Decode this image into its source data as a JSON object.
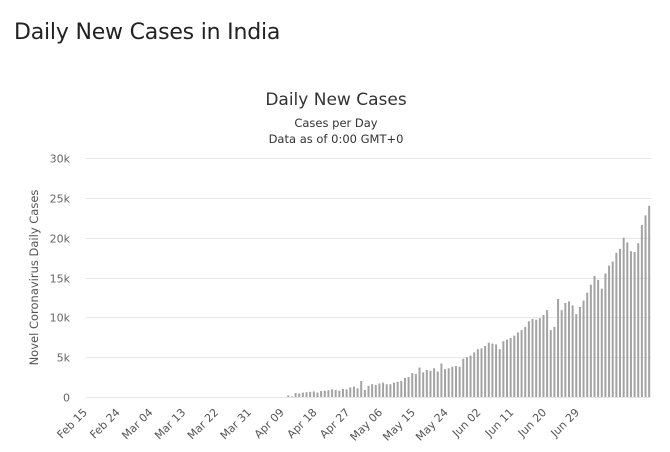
{
  "page": {
    "heading": "Daily New Cases in India"
  },
  "chart_data": {
    "type": "bar",
    "title": "Daily New Cases",
    "subtitle_lines": [
      "Cases per Day",
      "Data as of 0:00 GMT+0"
    ],
    "ylabel": "Novel Coronavirus Daily Cases",
    "xlabel": "",
    "ylim": [
      0,
      30000
    ],
    "yticks": [
      0,
      5000,
      10000,
      15000,
      20000,
      25000,
      30000
    ],
    "ytick_labels": [
      "0",
      "5k",
      "10k",
      "15k",
      "20k",
      "25k",
      "30k"
    ],
    "grid": true,
    "bar_color": "#a3a3a3",
    "zero_line_color": "#ccd6eb",
    "categories_start": "Feb 15",
    "xtick_labels": [
      "Feb 15",
      "Feb 24",
      "Mar 04",
      "Mar 13",
      "Mar 22",
      "Mar 31",
      "Apr 09",
      "Apr 18",
      "Apr 27",
      "May 06",
      "May 15",
      "May 24",
      "Jun 02",
      "Jun 11",
      "Jun 20",
      "Jun 29"
    ],
    "values": [
      0,
      0,
      0,
      0,
      0,
      0,
      0,
      0,
      0,
      0,
      0,
      0,
      0,
      0,
      0,
      0,
      0,
      0,
      0,
      0,
      0,
      0,
      0,
      0,
      0,
      0,
      0,
      0,
      0,
      0,
      0,
      0,
      0,
      0,
      0,
      0,
      0,
      0,
      0,
      0,
      0,
      0,
      0,
      0,
      0,
      0,
      0,
      0,
      0,
      0,
      0,
      0,
      0,
      0,
      0,
      200,
      80,
      500,
      450,
      550,
      600,
      650,
      700,
      550,
      750,
      800,
      850,
      950,
      900,
      800,
      1000,
      950,
      1200,
      1300,
      1100,
      2000,
      900,
      1400,
      1600,
      1500,
      1700,
      1800,
      1600,
      1600,
      1800,
      1900,
      2000,
      2400,
      2500,
      3000,
      2900,
      3700,
      3100,
      3400,
      3300,
      3600,
      3200,
      4200,
      3500,
      3600,
      3800,
      3900,
      3800,
      4800,
      5000,
      5200,
      5600,
      6000,
      6100,
      6400,
      6800,
      6700,
      6600,
      6000,
      7000,
      7200,
      7400,
      7700,
      8100,
      8400,
      8800,
      9500,
      9800,
      9700,
      9900,
      10300,
      10900,
      8400,
      8800,
      12300,
      10900,
      11800,
      12000,
      11500,
      10400,
      11300,
      12100,
      13100,
      14100,
      15200,
      14700,
      13600,
      15500,
      16500,
      17000,
      18100,
      18600,
      20000,
      19400,
      18300,
      18200,
      19300,
      21600,
      22800,
      24000
    ]
  }
}
